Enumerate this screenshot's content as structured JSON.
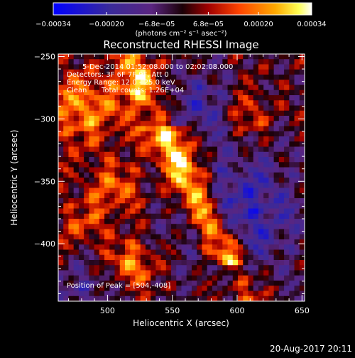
{
  "chart_data": {
    "type": "heatmap",
    "title": "Reconstructed RHESSI Image",
    "xlabel": "Heliocentric X (arcsec)",
    "ylabel": "Heliocentric Y (arcsec)",
    "xlim": [
      462,
      652
    ],
    "ylim": [
      -446,
      -248
    ],
    "x_ticks": [
      500,
      550,
      600,
      650
    ],
    "y_ticks": [
      -250,
      -300,
      -350,
      -400
    ],
    "x_tick_labels": [
      "500",
      "550",
      "600",
      "650"
    ],
    "y_tick_labels": [
      "−250",
      "−300",
      "−350",
      "−400"
    ],
    "colorbar": {
      "unit_label": "(photons cm⁻² s⁻¹ asec⁻²)",
      "range": [
        -0.00034,
        0.00034
      ],
      "row1_labels": [
        "−0.00034",
        "−6.8e−05",
        "0.00020"
      ],
      "row1_values": [
        -0.00034,
        -6.8e-05,
        0.0002
      ],
      "row2_labels": [
        "−0.00020",
        "6.8e−05",
        "0.00034"
      ],
      "row2_values": [
        -0.0002,
        6.8e-05,
        0.00034
      ]
    },
    "annotations": {
      "line1": "5-Dec-2014 01:52:08.000 to 02:02:08.000",
      "line2": "Detectors: 3F 6F 7F 9F, Att 0",
      "line3": "Energy Range: 12.0 - 25.0 keV",
      "line4_a": "Clean",
      "line4_b": "Total counts: 1.26E+04",
      "peak": "Position of Peak = [504,-408]"
    },
    "peak_position": [
      504,
      -408
    ]
  },
  "footer": {
    "timestamp": "20-Aug-2017 20:11"
  },
  "colors": {
    "background": "#000000",
    "text": "#ffffff"
  }
}
